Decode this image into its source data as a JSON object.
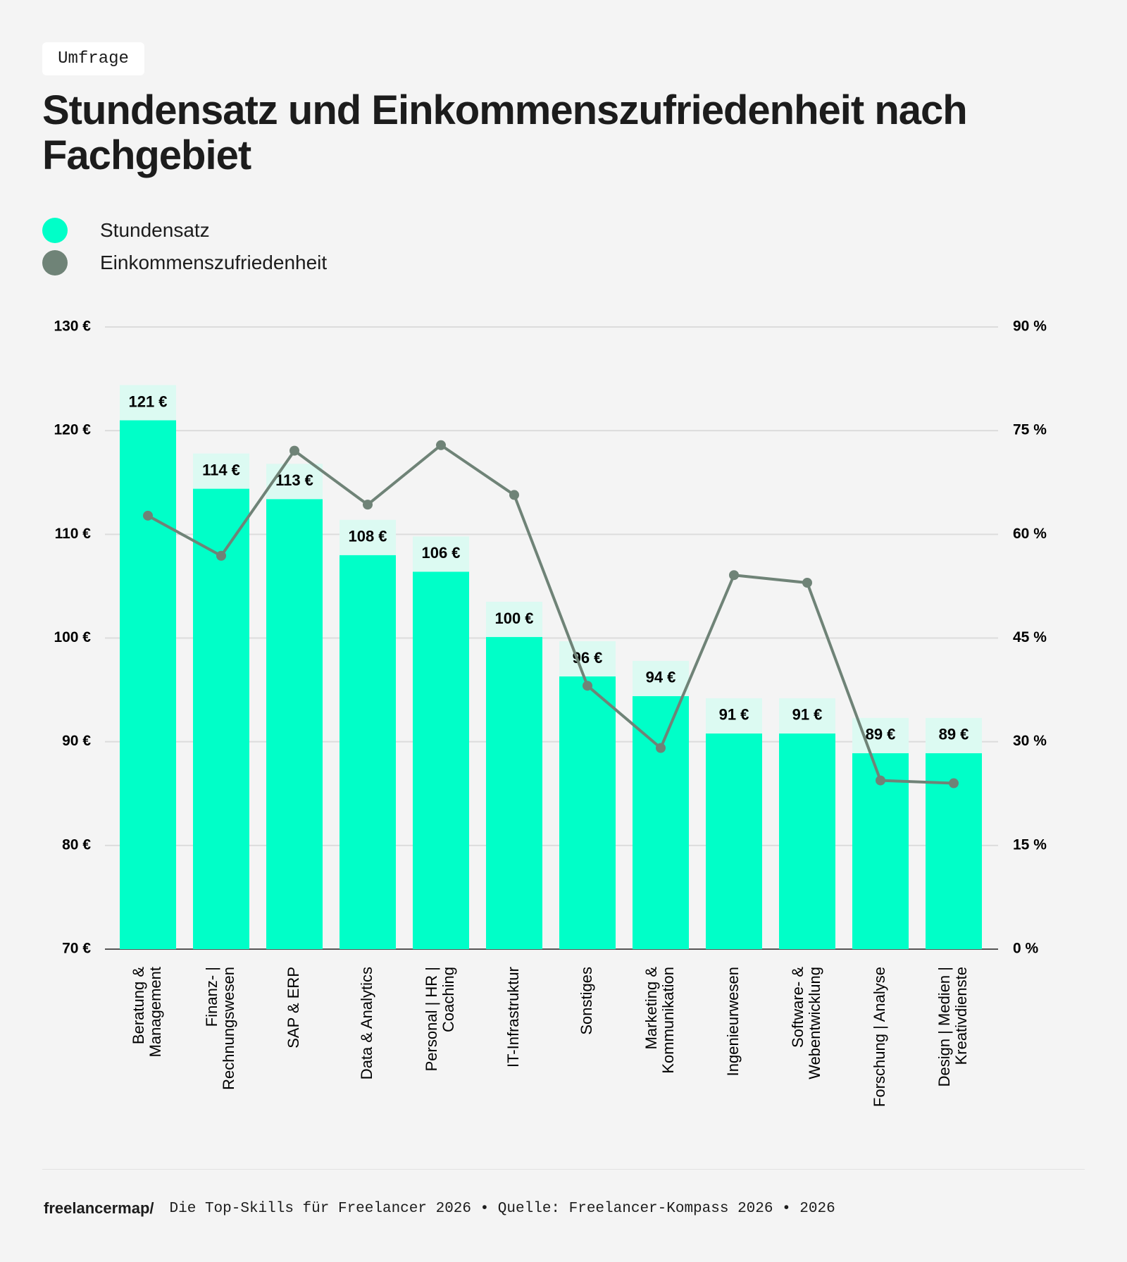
{
  "chart_data": {
    "type": "bar",
    "tag": "Umfrage",
    "title": "Stundensatz und Einkommenszufriedenheit nach Fachgebiet",
    "categories": [
      "Beratung &\nManagement",
      "Finanz- |\nRechnungswesen",
      "SAP & ERP",
      "Data & Analytics",
      "Personal | HR |\nCoaching",
      "IT-Infrastruktur",
      "Sonstiges",
      "Marketing &\nKommunikation",
      "Ingenieurwesen",
      "Software- &\nWebentwicklung",
      "Forschung | Analyse",
      "Design | Medien |\nKreativdienste"
    ],
    "series": [
      {
        "name": "Stundensatz",
        "color": "#00ffc8",
        "label_bg": "#dcfaf2",
        "values": [
          121,
          114.4,
          113.4,
          108,
          106.4,
          100.1,
          96.3,
          94.4,
          90.8,
          90.8,
          88.9,
          88.9
        ],
        "value_labels": [
          "121 €",
          "114 €",
          "113 €",
          "108 €",
          "106 €",
          "100 €",
          "96 €",
          "94 €",
          "91 €",
          "91 €",
          "89 €",
          "89 €"
        ]
      },
      {
        "name": "Einkommenszufriedenheit",
        "color": "#6f8377",
        "type": "line",
        "axis": "y2",
        "values": [
          62.7,
          56.9,
          72.1,
          64.3,
          72.9,
          65.7,
          38.1,
          29.1,
          54.1,
          53.0,
          24.4,
          24.0
        ]
      }
    ],
    "ylim": [
      70,
      130
    ],
    "yticks": [
      {
        "value": 70,
        "label": "70 €"
      },
      {
        "value": 80,
        "label": "80 €"
      },
      {
        "value": 90,
        "label": "90 €"
      },
      {
        "value": 100,
        "label": "100 €"
      },
      {
        "value": 110,
        "label": "110 €"
      },
      {
        "value": 120,
        "label": "120 €"
      },
      {
        "value": 130,
        "label": "130 €"
      }
    ],
    "y2lim": [
      0,
      90
    ],
    "y2ticks": [
      {
        "value": 0,
        "label": "0 %"
      },
      {
        "value": 15,
        "label": "15 %"
      },
      {
        "value": 30,
        "label": "30 %"
      },
      {
        "value": 45,
        "label": "45 %"
      },
      {
        "value": 60,
        "label": "60 %"
      },
      {
        "value": 75,
        "label": "75 %"
      },
      {
        "value": 90,
        "label": "90 %"
      }
    ],
    "grid": true
  },
  "footer": {
    "logo": "freelancermap/",
    "text": "Die Top-Skills für Freelancer 2026 • Quelle: Freelancer-Kompass 2026 • 2026"
  }
}
